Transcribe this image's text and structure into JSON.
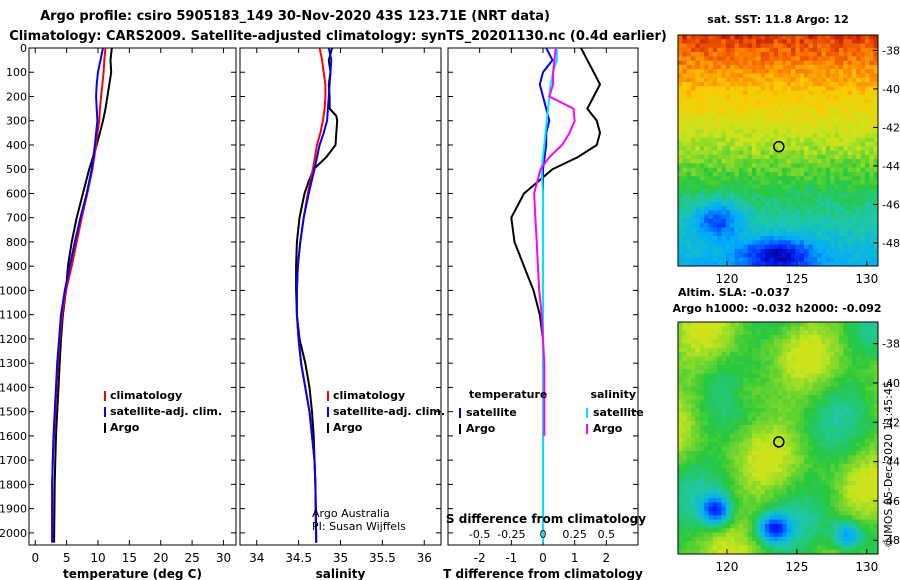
{
  "title_line1": "Argo profile: csiro 5905183_149 30-Nov-2020 43S 123.71E (NRT data)",
  "title_line2": "Climatology: CARS2009. Satellite-adjusted climatology: synTS_20201130.nc (0.4d earlier)",
  "colors": {
    "argo": "#000000",
    "climatology": "#ff0000",
    "satellite": "#0000ff",
    "satellite_s": "#00e5ff",
    "argo_s": "#ff00ff",
    "marker": "#000000"
  },
  "depth_axis": {
    "range": [
      0,
      2050
    ],
    "ticks": [
      0,
      100,
      200,
      300,
      400,
      500,
      600,
      700,
      800,
      900,
      1000,
      1100,
      1200,
      1300,
      1400,
      1500,
      1600,
      1700,
      1800,
      1900,
      2000
    ],
    "tick_labels": [
      "0",
      "100",
      "200",
      "300",
      "400",
      "500",
      "600",
      "700",
      "800",
      "900",
      "1000",
      "1100",
      "1200",
      "1300",
      "1400",
      "1500",
      "1600",
      "1700",
      "1800",
      "1900",
      "2000"
    ]
  },
  "credits": {
    "line1": "Argo Australia",
    "line2": "PI: Susan Wijffels"
  },
  "timestamp": "©IMOS 05-Dec-2020 11:45:45",
  "chart_data": [
    {
      "type": "line",
      "id": "temperature",
      "xlabel": "temperature (deg C)",
      "xlim": [
        -1,
        32
      ],
      "ylim": [
        2050,
        0
      ],
      "xticks": [
        0,
        5,
        10,
        15,
        20,
        25,
        30
      ],
      "xtick_labels": [
        "0",
        "5",
        "10",
        "15",
        "20",
        "25",
        "30"
      ],
      "legend": [
        "climatology",
        "satellite-adj. clim.",
        "Argo"
      ],
      "series": [
        {
          "name": "Argo",
          "color": "#000000",
          "x": [
            12.2,
            12.0,
            12.1,
            11.8,
            11.5,
            11.2,
            10.8,
            10.3,
            9.8,
            9.2,
            8.6,
            7.6,
            6.6,
            5.8,
            5.2,
            4.9,
            4.4,
            4.1,
            3.9,
            3.7,
            3.5,
            3.3,
            3.2,
            3.1,
            3.0
          ],
          "y": [
            0,
            50,
            100,
            150,
            200,
            250,
            300,
            350,
            400,
            450,
            500,
            600,
            700,
            800,
            900,
            1000,
            1100,
            1200,
            1300,
            1400,
            1500,
            1600,
            1700,
            1800,
            2040
          ]
        },
        {
          "name": "climatology",
          "color": "#ff0000",
          "x": [
            11.2,
            11.0,
            10.9,
            10.7,
            10.5,
            10.3,
            10.2,
            9.9,
            9.7,
            9.1,
            8.3,
            7.4,
            6.6,
            5.8,
            4.9,
            4.3,
            3.9,
            3.6,
            3.4,
            3.2,
            3.0,
            2.8,
            2.7,
            2.7
          ],
          "y": [
            0,
            50,
            100,
            150,
            200,
            250,
            300,
            350,
            400,
            500,
            600,
            700,
            800,
            900,
            1000,
            1100,
            1200,
            1300,
            1400,
            1500,
            1600,
            1700,
            1800,
            2040
          ]
        },
        {
          "name": "satellite-adj. clim.",
          "color": "#0000ff",
          "x": [
            10.8,
            10.4,
            10.0,
            9.8,
            9.7,
            9.8,
            9.9,
            9.7,
            9.5,
            9.0,
            8.2,
            7.2,
            6.3,
            5.5,
            4.7,
            4.1,
            3.8,
            3.5,
            3.3,
            3.1,
            2.9,
            2.8,
            2.7,
            2.7
          ],
          "y": [
            0,
            50,
            100,
            150,
            200,
            250,
            300,
            350,
            400,
            500,
            600,
            700,
            800,
            900,
            1000,
            1100,
            1200,
            1300,
            1400,
            1500,
            1600,
            1700,
            1800,
            2040
          ]
        }
      ]
    },
    {
      "type": "line",
      "id": "salinity",
      "xlabel": "salinity",
      "xlim": [
        33.8,
        36.2
      ],
      "ylim": [
        2050,
        0
      ],
      "xticks": [
        34,
        34.5,
        35,
        35.5,
        36
      ],
      "xtick_labels": [
        "34",
        "34.5",
        "35",
        "35.5",
        "36"
      ],
      "legend": [
        "climatology",
        "satellite-adj. clim.",
        "Argo"
      ],
      "series": [
        {
          "name": "Argo",
          "color": "#000000",
          "x": [
            34.9,
            34.86,
            34.88,
            34.86,
            34.87,
            34.87,
            34.95,
            34.96,
            34.95,
            34.94,
            34.83,
            34.68,
            34.62,
            34.57,
            34.51,
            34.48,
            34.47,
            34.47,
            34.48,
            34.51,
            34.58,
            34.63,
            34.66,
            34.68,
            34.69,
            34.7,
            34.71
          ],
          "y": [
            0,
            50,
            100,
            150,
            200,
            250,
            280,
            300,
            350,
            400,
            450,
            500,
            550,
            600,
            700,
            800,
            900,
            1000,
            1100,
            1200,
            1300,
            1400,
            1500,
            1600,
            1700,
            1800,
            2040
          ]
        },
        {
          "name": "climatology",
          "color": "#ff0000",
          "x": [
            34.75,
            34.78,
            34.8,
            34.82,
            34.82,
            34.81,
            34.79,
            34.76,
            34.72,
            34.67,
            34.61,
            34.56,
            34.52,
            34.49,
            34.48,
            34.48,
            34.5,
            34.53,
            34.58,
            34.63,
            34.66,
            34.69,
            34.7,
            34.71
          ],
          "y": [
            0,
            50,
            100,
            150,
            200,
            250,
            300,
            350,
            400,
            500,
            600,
            700,
            800,
            900,
            1000,
            1100,
            1200,
            1300,
            1400,
            1500,
            1600,
            1700,
            1800,
            2040
          ]
        },
        {
          "name": "satellite-adj. clim.",
          "color": "#0000ff",
          "x": [
            34.86,
            34.89,
            34.88,
            34.87,
            34.86,
            34.85,
            34.84,
            34.8,
            34.75,
            34.69,
            34.62,
            34.56,
            34.52,
            34.49,
            34.48,
            34.48,
            34.5,
            34.53,
            34.58,
            34.63,
            34.66,
            34.69,
            34.7,
            34.71
          ],
          "y": [
            0,
            50,
            100,
            150,
            200,
            250,
            300,
            350,
            400,
            500,
            600,
            700,
            800,
            900,
            1000,
            1100,
            1200,
            1300,
            1400,
            1500,
            1600,
            1700,
            1800,
            2040
          ]
        }
      ]
    },
    {
      "type": "line",
      "id": "difference",
      "xlabel": "T difference from climatology",
      "xlabel_top": "S difference from climatology",
      "xlim": [
        -3,
        3
      ],
      "ylim": [
        2050,
        0
      ],
      "xticks": [
        -2,
        -1,
        0,
        1,
        2
      ],
      "xtick_labels": [
        "-2",
        "-1",
        "0",
        "1",
        "2"
      ],
      "s_ticks": [
        -0.5,
        -0.25,
        0,
        0.25,
        0.5
      ],
      "s_tick_labels": [
        "-0.5",
        "-0.25",
        "0",
        "0.25",
        "0.5"
      ],
      "legend_temperature_title": "temperature",
      "legend_salinity_title": "salinity",
      "legend_temperature": [
        "satellite",
        "Argo"
      ],
      "legend_salinity": [
        "satellite",
        "Argo"
      ],
      "series": [
        {
          "name": "temperature Argo",
          "color": "#000000",
          "x": [
            1.2,
            1.4,
            1.6,
            1.8,
            1.6,
            1.4,
            1.7,
            1.8,
            1.7,
            1.1,
            0.3,
            -0.6,
            -1.0,
            -0.9,
            -0.6,
            -0.3,
            -0.1,
            0.0,
            0.0,
            0.0,
            0.0,
            0.0,
            0.0
          ],
          "y": [
            0,
            50,
            100,
            150,
            200,
            250,
            300,
            350,
            400,
            450,
            500,
            600,
            700,
            800,
            900,
            1000,
            1100,
            1200,
            1300,
            1400,
            1500,
            1600,
            2040
          ]
        },
        {
          "name": "temperature satellite",
          "color": "#0000ff",
          "x": [
            0.1,
            0.3,
            0.0,
            -0.1,
            0.0,
            0.1,
            0.2,
            0.1,
            0.1,
            0.05,
            0.0,
            0.0,
            0.0,
            0.0,
            0.0,
            0.0,
            0.0,
            0.0,
            0.0,
            0.0
          ],
          "y": [
            0,
            50,
            100,
            150,
            200,
            250,
            300,
            350,
            400,
            450,
            500,
            600,
            700,
            800,
            900,
            1000,
            1100,
            1200,
            1300,
            2040
          ]
        },
        {
          "name": "salinity satellite",
          "color": "#00e5ff",
          "x": [
            0.11,
            0.11,
            0.08,
            0.06,
            0.05,
            0.04,
            0.03,
            0.02,
            0.01,
            0.0,
            -0.01,
            0.0,
            0.0,
            0.0,
            0.0,
            0.0,
            0.0,
            0.0,
            0.0,
            0.0
          ],
          "y": [
            0,
            50,
            100,
            150,
            200,
            250,
            300,
            350,
            400,
            450,
            500,
            600,
            700,
            800,
            900,
            1000,
            1100,
            1200,
            1300,
            2040
          ]
        },
        {
          "name": "salinity Argo",
          "color": "#ff00ff",
          "x": [
            0.1,
            0.09,
            0.08,
            0.08,
            0.05,
            0.24,
            0.25,
            0.21,
            0.15,
            0.05,
            -0.02,
            -0.07,
            -0.06,
            -0.05,
            -0.04,
            -0.03,
            -0.01,
            0.0,
            0.01,
            0.01,
            0.01,
            0.01
          ],
          "y": [
            0,
            50,
            100,
            150,
            200,
            250,
            300,
            350,
            400,
            450,
            500,
            600,
            700,
            800,
            900,
            1000,
            1100,
            1200,
            1300,
            1400,
            1500,
            1600
          ]
        }
      ]
    },
    {
      "type": "heatmap",
      "id": "sst_map",
      "title": "sat. SST: 11.8 Argo: 12",
      "xlim": [
        116.5,
        130.8
      ],
      "ylim": [
        -49.2,
        -37.2
      ],
      "xticks": [
        120,
        125,
        130
      ],
      "xtick_labels": [
        "120",
        "125",
        "130"
      ],
      "yticks": [
        -38,
        -40,
        -42,
        -44,
        -46,
        -48
      ],
      "ytick_labels": [
        "-38",
        "-40",
        "-42",
        "-44",
        "-46",
        "-48"
      ],
      "marker": {
        "lon": 123.71,
        "lat": -43
      }
    },
    {
      "type": "heatmap",
      "id": "sla_map",
      "title_line1": "Altim. SLA: -0.037",
      "title_line2": "Argo h1000: -0.032 h2000: -0.092",
      "xlim": [
        116.5,
        130.8
      ],
      "ylim": [
        -48.7,
        -36.9
      ],
      "xticks": [
        120,
        125,
        130
      ],
      "xtick_labels": [
        "120",
        "125",
        "130"
      ],
      "yticks": [
        -38,
        -40,
        -42,
        -44,
        -46,
        -48
      ],
      "ytick_labels": [
        "-38",
        "-40",
        "-42",
        "-44",
        "-46",
        "-48"
      ],
      "marker": {
        "lon": 123.71,
        "lat": -43
      }
    }
  ]
}
